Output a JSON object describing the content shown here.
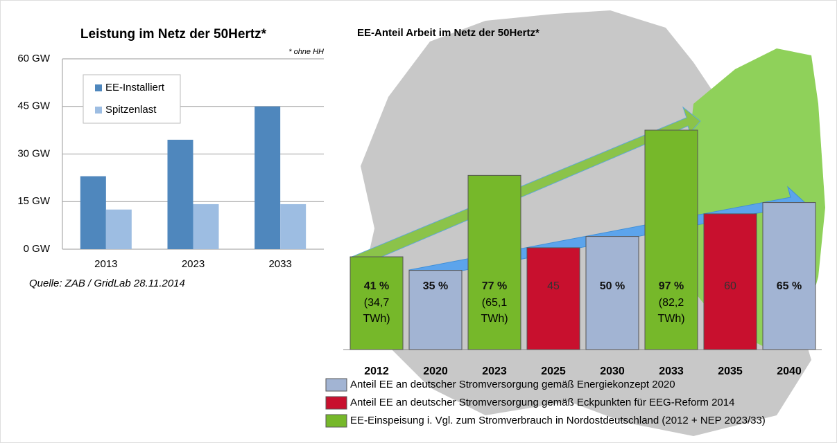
{
  "chart_data": [
    {
      "type": "bar",
      "title": "Leistung im Netz der 50Hertz*",
      "note": "* ohne HH",
      "source": "Quelle: ZAB / GridLab 28.11.2014",
      "categories": [
        "2013",
        "2023",
        "2033"
      ],
      "series": [
        {
          "name": "EE-Installiert",
          "color": "#4f87bd",
          "values": [
            23,
            34.5,
            45
          ]
        },
        {
          "name": "Spitzenlast",
          "color": "#9dbde2",
          "values": [
            12.5,
            14.2,
            14.2
          ]
        }
      ],
      "ylim": [
        0,
        60
      ],
      "yticks": [
        {
          "value": 0,
          "label": "0 GW"
        },
        {
          "value": 15,
          "label": "15 GW"
        },
        {
          "value": 30,
          "label": "30 GW"
        },
        {
          "value": 45,
          "label": "45 GW"
        },
        {
          "value": 60,
          "label": "60 GW"
        }
      ],
      "grid": true,
      "legend": "upper left"
    },
    {
      "type": "bar",
      "title": "EE-Anteil Arbeit im Netz der 50Hertz*",
      "categories": [
        "2012",
        "2020",
        "2023",
        "2025",
        "2030",
        "2033",
        "2035",
        "2040"
      ],
      "values": [
        41,
        35,
        77,
        45,
        50,
        97,
        60,
        65
      ],
      "value_labels": [
        "41 %",
        "35 %",
        "77 %",
        "45",
        "50 %",
        "97 %",
        "60",
        "65 %"
      ],
      "sublabels": [
        [
          "(34,7",
          "TWh)"
        ],
        null,
        [
          "(65,1",
          "TWh)"
        ],
        null,
        null,
        [
          "(82,2",
          "TWh)"
        ],
        null,
        null
      ],
      "colors": [
        "#76b82a",
        "#a2b4d3",
        "#76b82a",
        "#c8102e",
        "#a2b4d3",
        "#76b82a",
        "#c8102e",
        "#a2b4d3"
      ],
      "legend": [
        {
          "name": "Anteil EE an deutscher Stromversorgung gemäß Energiekonzept 2020",
          "color": "#a2b4d3"
        },
        {
          "name": "Anteil EE an deutscher Stromversorgung gemäß Eckpunkten für EEG-Reform 2014",
          "color": "#c8102e"
        },
        {
          "name": "EE-Einspeisung i. Vgl. zum Stromverbrauch in Nordostdeutschland (2012 + NEP 2023/33)",
          "color": "#76b82a"
        }
      ]
    }
  ]
}
